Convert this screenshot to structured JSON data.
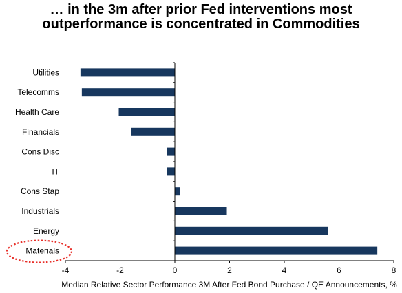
{
  "title": {
    "line1": "… in the 3m after prior Fed interventions most",
    "line2": "outperformance is concentrated in Commodities"
  },
  "chart_data": {
    "type": "bar",
    "orientation": "horizontal",
    "categories": [
      "Utilities",
      "Telecomms",
      "Health Care",
      "Financials",
      "Cons Disc",
      "IT",
      "Cons Stap",
      "Industrials",
      "Energy",
      "Materials"
    ],
    "values": [
      -3.45,
      -3.4,
      -2.05,
      -1.6,
      -0.3,
      -0.3,
      0.2,
      1.9,
      5.6,
      7.4
    ],
    "xlabel": "Median Relative Sector Performance 3M After Fed Bond Purchase / QE Announcements, %",
    "xlim": [
      -4,
      8
    ],
    "xticks": [
      -4,
      -2,
      0,
      2,
      4,
      6,
      8
    ],
    "bar_color": "#17375e",
    "highlight": {
      "category": "Materials",
      "color": "#e8302a",
      "style": "dotted-ellipse"
    },
    "grid": false
  }
}
